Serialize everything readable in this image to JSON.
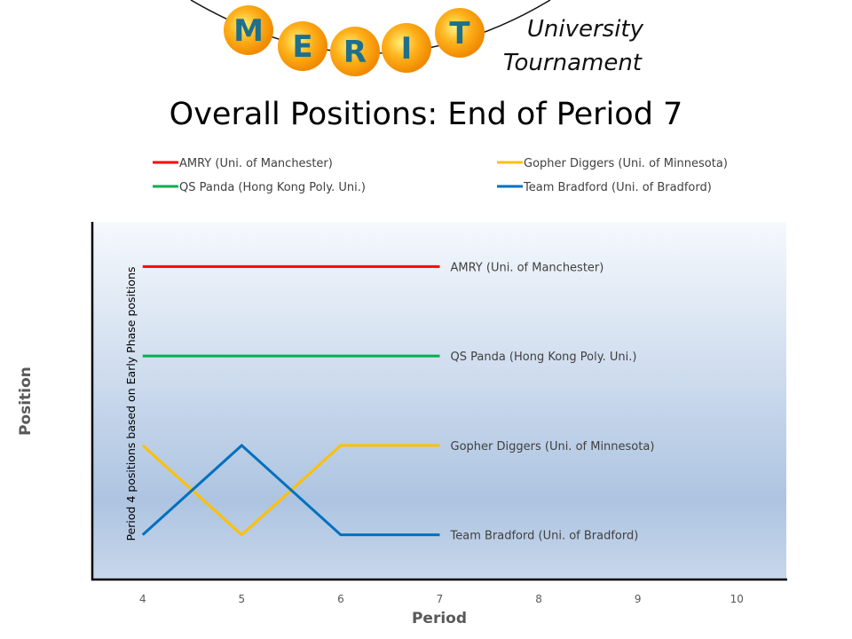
{
  "logo": {
    "letters": [
      "M",
      "E",
      "R",
      "I",
      "T"
    ],
    "line1": "University",
    "line2": "Tournament"
  },
  "chart_data": {
    "type": "line",
    "title": "Overall Positions: End of Period 7",
    "xlabel": "Period",
    "ylabel": "Position",
    "x_ticks": [
      4,
      5,
      6,
      7,
      8,
      9,
      10
    ],
    "xlim": [
      3.5,
      10.5
    ],
    "ylim": [
      4.5,
      0.5
    ],
    "y_inverted": true,
    "y_tick_labels_shown": false,
    "grid": false,
    "legend_placement": "top",
    "annotation": "Period 4 positions based on Early Phase positions",
    "x": [
      4,
      5,
      6,
      7
    ],
    "series": [
      {
        "name": "AMRY (Uni. of Manchester)",
        "color": "#ff0000",
        "values": [
          1,
          1,
          1,
          1
        ]
      },
      {
        "name": "QS Panda (Hong Kong Poly. Uni.)",
        "color": "#00b050",
        "values": [
          2,
          2,
          2,
          2
        ]
      },
      {
        "name": "Gopher Diggers (Uni. of Minnesota)",
        "color": "#ffc000",
        "values": [
          3,
          4,
          3,
          3
        ]
      },
      {
        "name": "Team Bradford (Uni. of Bradford)",
        "color": "#0070c0",
        "values": [
          4,
          3,
          4,
          4
        ]
      }
    ],
    "legend_order": [
      0,
      2,
      1,
      3
    ]
  }
}
